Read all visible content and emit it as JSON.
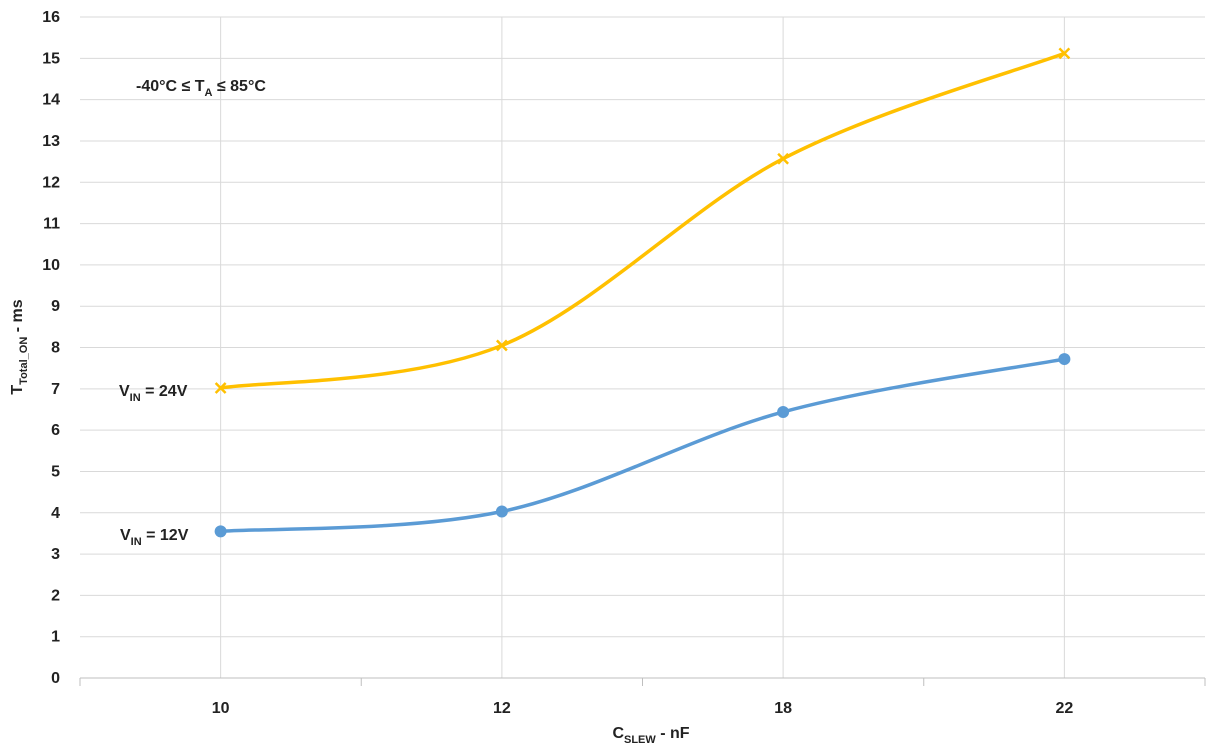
{
  "chart_data": {
    "type": "line",
    "title": "",
    "categories": [
      "10",
      "12",
      "18",
      "22"
    ],
    "ylim": [
      0,
      16
    ],
    "yticks": [
      0,
      1,
      2,
      3,
      4,
      5,
      6,
      7,
      8,
      9,
      10,
      11,
      12,
      13,
      14,
      15,
      16
    ],
    "grid": true,
    "legend": "none",
    "xlabel": {
      "main": "C",
      "sub": "SLEW",
      "rest": " - nF"
    },
    "ylabel": {
      "main": "T",
      "sub": "Total_ON",
      "rest": " - ms"
    },
    "annotations": [
      {
        "pre": "-40°C ≤ T",
        "sub": "A",
        "post": " ≤ 85°C"
      }
    ],
    "series": [
      {
        "label_main": "V",
        "label_sub": "IN",
        "label_rest": " = 24V",
        "values": [
          7.02,
          8.05,
          12.57,
          15.12
        ],
        "color": "#FFC000",
        "marker": "x"
      },
      {
        "label_main": "V",
        "label_sub": "IN",
        "label_rest": " = 12V",
        "values": [
          3.55,
          4.03,
          6.44,
          7.72
        ],
        "color": "#5B9BD5",
        "marker": "circle"
      }
    ]
  }
}
